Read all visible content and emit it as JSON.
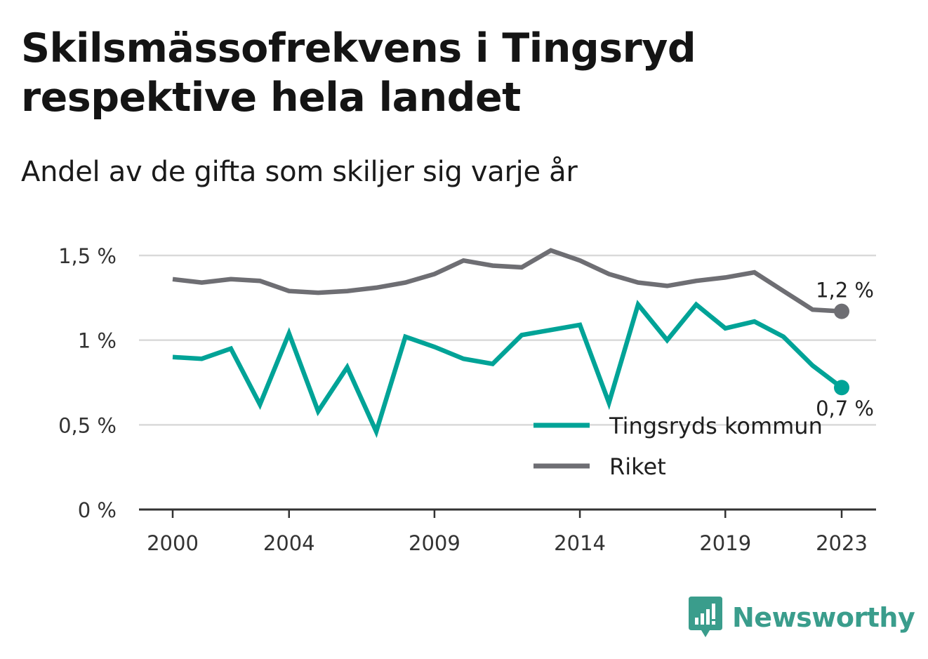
{
  "title": "Skilsmässofrekvens i Tingsryd respektive hela landet",
  "subtitle": "Andel av de gifta som skiljer sig varje år",
  "brand": {
    "name": "Newsworthy",
    "icon": "bar-chart-speech-bubble-icon",
    "color": "#3a9d8c"
  },
  "colors": {
    "tingsryd": "#00a397",
    "riket": "#6e6e73",
    "grid": "#d9d9d9",
    "axis": "#333333"
  },
  "chart_data": {
    "type": "line",
    "x": [
      2000,
      2001,
      2002,
      2003,
      2004,
      2005,
      2006,
      2007,
      2008,
      2009,
      2010,
      2011,
      2012,
      2013,
      2014,
      2015,
      2016,
      2017,
      2018,
      2019,
      2020,
      2021,
      2022,
      2023
    ],
    "x_ticks": [
      2000,
      2004,
      2009,
      2014,
      2019,
      2023
    ],
    "x_tick_labels": [
      "2000",
      "2004",
      "2009",
      "2014",
      "2019",
      "2023"
    ],
    "y_ticks": [
      0,
      0.5,
      1,
      1.5
    ],
    "y_tick_labels": [
      "0 %",
      "0,5 %",
      "1 %",
      "1,5 %"
    ],
    "ylim": [
      0,
      1.5
    ],
    "grid": true,
    "legend_position": "bottom-right",
    "series": [
      {
        "name": "Tingsryds kommun",
        "color": "#00a397",
        "values": [
          0.9,
          0.89,
          0.95,
          0.62,
          1.04,
          0.58,
          0.84,
          0.46,
          1.02,
          0.96,
          0.89,
          0.86,
          1.03,
          1.06,
          1.09,
          0.63,
          1.21,
          1.0,
          1.21,
          1.07,
          1.11,
          1.02,
          0.85,
          0.72
        ],
        "end_label": "0,7 %"
      },
      {
        "name": "Riket",
        "color": "#6e6e73",
        "values": [
          1.36,
          1.34,
          1.36,
          1.35,
          1.29,
          1.28,
          1.29,
          1.31,
          1.34,
          1.39,
          1.47,
          1.44,
          1.43,
          1.53,
          1.47,
          1.39,
          1.34,
          1.32,
          1.35,
          1.37,
          1.4,
          1.29,
          1.18,
          1.17
        ],
        "end_label": "1,2 %"
      }
    ]
  }
}
